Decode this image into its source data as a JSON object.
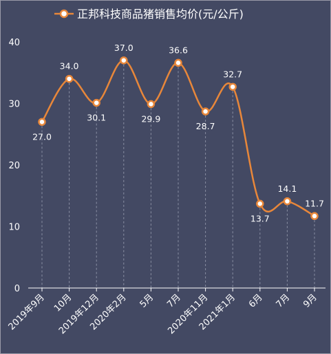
{
  "chart_data": {
    "type": "line",
    "title": "",
    "xlabel": "",
    "ylabel": "",
    "ylim": [
      0,
      40
    ],
    "yticks": [
      0,
      10,
      20,
      30,
      40
    ],
    "grid": "vertical-dashed",
    "legend": "top-center",
    "categories": [
      "2019年9月",
      "10月",
      "2019年12月",
      "2020年2月",
      "5月",
      "7月",
      "2020年11月",
      "2021年1月",
      "6月",
      "7月",
      "9月"
    ],
    "series": [
      {
        "name": "正邦科技商品猪销售均价(元/公斤)",
        "color": "#e8873a",
        "values": [
          27.0,
          34.0,
          30.1,
          37.0,
          29.9,
          36.6,
          28.7,
          32.7,
          13.7,
          14.1,
          11.7
        ],
        "labels": [
          "27.0",
          "34.0",
          "30.1",
          "37.0",
          "29.9",
          "36.6",
          "28.7",
          "32.7",
          "13.7",
          "14.1",
          "11.7"
        ],
        "label_pos": [
          "below",
          "above",
          "below",
          "above",
          "below",
          "above",
          "below",
          "above",
          "below",
          "above",
          "above"
        ]
      }
    ]
  },
  "colors": {
    "background": "#434963",
    "axis": "#ffffff",
    "grid": "#8a8fa3",
    "line": "#e8873a",
    "marker_fill": "#ffffff"
  }
}
